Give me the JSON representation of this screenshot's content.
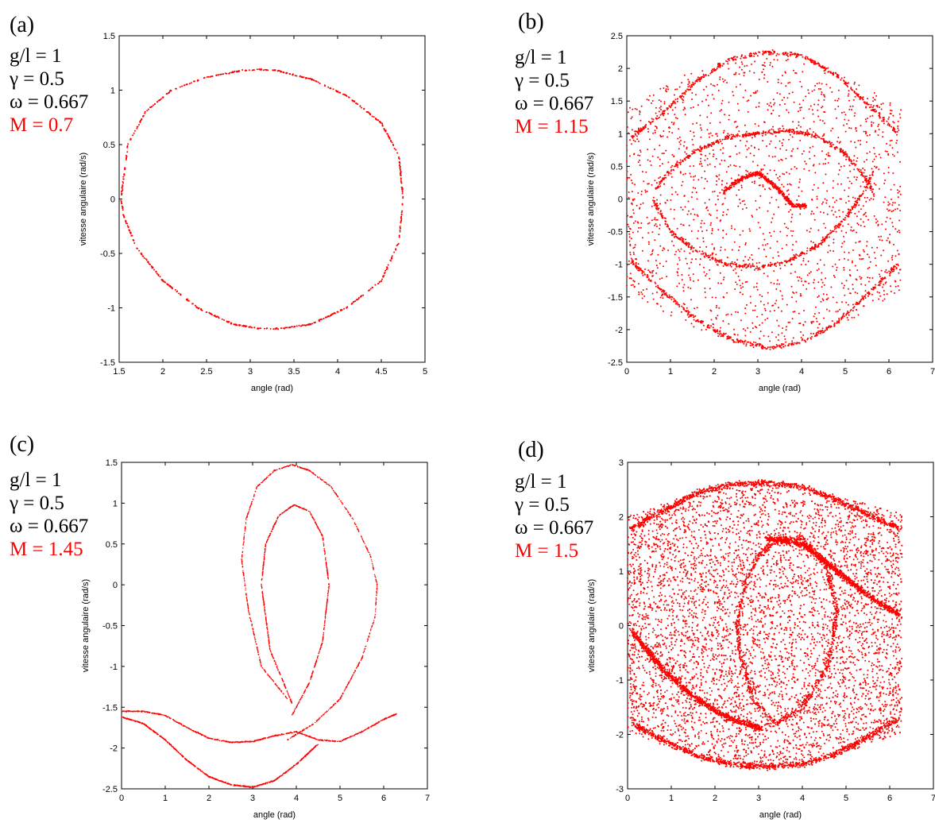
{
  "chart_data": [
    {
      "type": "scatter",
      "panel_label": "(a)",
      "xlabel": "angle (rad)",
      "ylabel": "vitesse angulaire (rad/s)",
      "xlim": [
        1.5,
        5
      ],
      "ylim": [
        -1.5,
        1.5
      ],
      "xticks": [
        "1.5",
        "2",
        "2.5",
        "3",
        "3.5",
        "4",
        "4.5",
        "5"
      ],
      "yticks": [
        "-1.5",
        "-1",
        "-0.5",
        "0",
        "0.5",
        "1",
        "1.5"
      ],
      "params": [
        "g/l = 1",
        "γ = 0.5",
        "ω = 0.667"
      ],
      "m_label": "M = 0.7",
      "point_color": "#ff0000",
      "series": [
        {
          "shape": "closed_orbit",
          "x": [
            1.52,
            1.6,
            1.8,
            2.1,
            2.5,
            2.9,
            3.1,
            3.3,
            3.7,
            4.1,
            4.5,
            4.7,
            4.75,
            4.7,
            4.5,
            4.1,
            3.7,
            3.35,
            3.1,
            2.8,
            2.4,
            2.0,
            1.7,
            1.55,
            1.52
          ],
          "y": [
            0.0,
            0.5,
            0.8,
            1.0,
            1.12,
            1.18,
            1.19,
            1.18,
            1.1,
            0.95,
            0.7,
            0.4,
            0.0,
            -0.4,
            -0.75,
            -1.0,
            -1.15,
            -1.19,
            -1.19,
            -1.15,
            -1.0,
            -0.75,
            -0.45,
            -0.15,
            0.0
          ]
        }
      ]
    },
    {
      "type": "scatter",
      "panel_label": "(b)",
      "xlabel": "angle (rad)",
      "ylabel": "vitesse angulaire (rad/s)",
      "xlim": [
        0,
        7
      ],
      "ylim": [
        -2.5,
        2.5
      ],
      "xticks": [
        "0",
        "1",
        "2",
        "3",
        "4",
        "5",
        "6",
        "7"
      ],
      "yticks": [
        "-2.5",
        "-2",
        "-1.5",
        "-1",
        "-0.5",
        "0",
        "0.5",
        "1",
        "1.5",
        "2",
        "2.5"
      ],
      "params": [
        "g/l = 1",
        "γ = 0.5",
        "ω = 0.667"
      ],
      "m_label": "M = 1.15",
      "point_color": "#ff0000",
      "series": [
        {
          "shape": "strange_attractor",
          "x_range": [
            0,
            6.28
          ],
          "y_range": [
            -2.3,
            2.3
          ],
          "curves": [
            {
              "x": [
                0.1,
                0.8,
                1.6,
                2.4,
                3.2,
                4.0,
                4.8,
                5.6,
                6.2
              ],
              "y": [
                0.95,
                1.3,
                1.8,
                2.15,
                2.25,
                2.2,
                1.9,
                1.4,
                1.0
              ]
            },
            {
              "x": [
                0.1,
                0.8,
                1.6,
                2.4,
                3.2,
                4.0,
                4.8,
                5.6,
                6.2
              ],
              "y": [
                -0.95,
                -1.4,
                -1.85,
                -2.15,
                -2.28,
                -2.2,
                -1.9,
                -1.4,
                -1.0
              ]
            },
            {
              "x": [
                0.6,
                1.0,
                1.6,
                2.3,
                3.0,
                3.7,
                4.4,
                5.0,
                5.5,
                5.7
              ],
              "y": [
                0.0,
                -0.5,
                -0.8,
                -1.0,
                -1.05,
                -0.95,
                -0.7,
                -0.3,
                0.2,
                0.5
              ]
            },
            {
              "x": [
                0.6,
                1.0,
                1.6,
                2.3,
                3.0,
                3.7,
                4.4,
                5.0,
                5.5,
                5.7
              ],
              "y": [
                0.1,
                0.45,
                0.75,
                0.95,
                1.0,
                1.05,
                0.95,
                0.7,
                0.3,
                0.0
              ]
            },
            {
              "x": [
                2.2,
                2.6,
                3.0,
                3.4,
                3.8,
                4.1
              ],
              "y": [
                0.1,
                0.3,
                0.4,
                0.2,
                -0.1,
                -0.1
              ]
            }
          ]
        }
      ]
    },
    {
      "type": "scatter",
      "panel_label": "(c)",
      "xlabel": "angle (rad)",
      "ylabel": "vitesse angulaire (rad/s)",
      "xlim": [
        0,
        7
      ],
      "ylim": [
        -2.5,
        1.5
      ],
      "xticks": [
        "0",
        "1",
        "2",
        "3",
        "4",
        "5",
        "6",
        "7"
      ],
      "yticks": [
        "-2.5",
        "-2",
        "-1.5",
        "-1",
        "-0.5",
        "0",
        "0.5",
        "1",
        "1.5"
      ],
      "params": [
        "g/l = 1",
        "γ = 0.5",
        "ω = 0.667"
      ],
      "m_label": "M = 1.45",
      "point_color": "#ff0000",
      "series": [
        {
          "shape": "outer_loop",
          "x": [
            3.8,
            3.2,
            2.9,
            2.75,
            2.85,
            3.1,
            3.5,
            3.9,
            4.3,
            4.8,
            5.3,
            5.7,
            5.85,
            5.8,
            5.5,
            5.0,
            4.4,
            3.8
          ],
          "y": [
            -1.4,
            -1.0,
            -0.3,
            0.3,
            0.8,
            1.2,
            1.4,
            1.47,
            1.4,
            1.2,
            0.8,
            0.35,
            0.0,
            -0.4,
            -0.9,
            -1.4,
            -1.7,
            -1.9
          ]
        },
        {
          "shape": "inner_loop",
          "x": [
            3.9,
            3.4,
            3.2,
            3.3,
            3.6,
            3.95,
            4.3,
            4.6,
            4.75,
            4.6,
            4.3,
            3.9
          ],
          "y": [
            -1.45,
            -0.8,
            0.0,
            0.5,
            0.85,
            0.98,
            0.9,
            0.6,
            0.0,
            -0.7,
            -1.2,
            -1.6
          ]
        },
        {
          "shape": "lower_curve",
          "x": [
            0.0,
            0.5,
            1.0,
            1.5,
            2.0,
            2.5,
            3.0,
            3.5,
            4.0,
            4.5
          ],
          "y": [
            -1.62,
            -1.7,
            -1.9,
            -2.15,
            -2.35,
            -2.45,
            -2.48,
            -2.4,
            -2.2,
            -1.95
          ]
        },
        {
          "shape": "middle_curve",
          "x": [
            0.0,
            0.5,
            1.0,
            1.5,
            2.0,
            2.5,
            3.0,
            3.5,
            4.0,
            4.5,
            5.0,
            5.5,
            6.0,
            6.3
          ],
          "y": [
            -1.55,
            -1.55,
            -1.6,
            -1.75,
            -1.88,
            -1.93,
            -1.92,
            -1.85,
            -1.8,
            -1.9,
            -1.92,
            -1.8,
            -1.65,
            -1.58
          ]
        }
      ]
    },
    {
      "type": "scatter",
      "panel_label": "(d)",
      "xlabel": "angle (rad)",
      "ylabel": "vitesse angulaire (rad/s)",
      "xlim": [
        0,
        7
      ],
      "ylim": [
        -3,
        3
      ],
      "xticks": [
        "0",
        "1",
        "2",
        "3",
        "4",
        "5",
        "6",
        "7"
      ],
      "yticks": [
        "-3",
        "-2",
        "-1",
        "0",
        "1",
        "2",
        "3"
      ],
      "params": [
        "g/l = 1",
        "γ = 0.5",
        "ω = 0.667"
      ],
      "m_label": "M = 1.5",
      "point_color": "#ff0000",
      "series": [
        {
          "shape": "dense_attractor",
          "x_range": [
            0,
            6.28
          ],
          "y_range": [
            -2.6,
            2.62
          ],
          "curves": [
            {
              "x": [
                0.1,
                0.8,
                1.6,
                2.4,
                3.2,
                4.0,
                4.8,
                5.6,
                6.2
              ],
              "y": [
                1.8,
                2.1,
                2.45,
                2.6,
                2.62,
                2.55,
                2.3,
                2.0,
                1.8
              ]
            },
            {
              "x": [
                0.1,
                0.8,
                1.6,
                2.4,
                3.2,
                4.0,
                4.8,
                5.6,
                6.2
              ],
              "y": [
                -1.8,
                -2.1,
                -2.4,
                -2.55,
                -2.6,
                -2.55,
                -2.35,
                -2.0,
                -1.7
              ]
            },
            {
              "x": [
                2.5,
                2.7,
                3.0,
                3.5,
                4.0,
                4.5,
                4.8,
                4.6,
                4.0,
                3.4,
                2.9,
                2.6,
                2.5
              ],
              "y": [
                0.0,
                0.8,
                1.3,
                1.6,
                1.6,
                1.2,
                0.3,
                -0.7,
                -1.5,
                -1.8,
                -1.4,
                -0.6,
                0.0
              ]
            },
            {
              "x": [
                0.1,
                0.8,
                1.5,
                2.3,
                3.1
              ],
              "y": [
                -0.1,
                -0.8,
                -1.3,
                -1.7,
                -1.9
              ]
            },
            {
              "x": [
                3.2,
                4.0,
                4.8,
                5.6,
                6.2
              ],
              "y": [
                1.6,
                1.5,
                1.0,
                0.5,
                0.2
              ]
            }
          ]
        }
      ]
    }
  ]
}
